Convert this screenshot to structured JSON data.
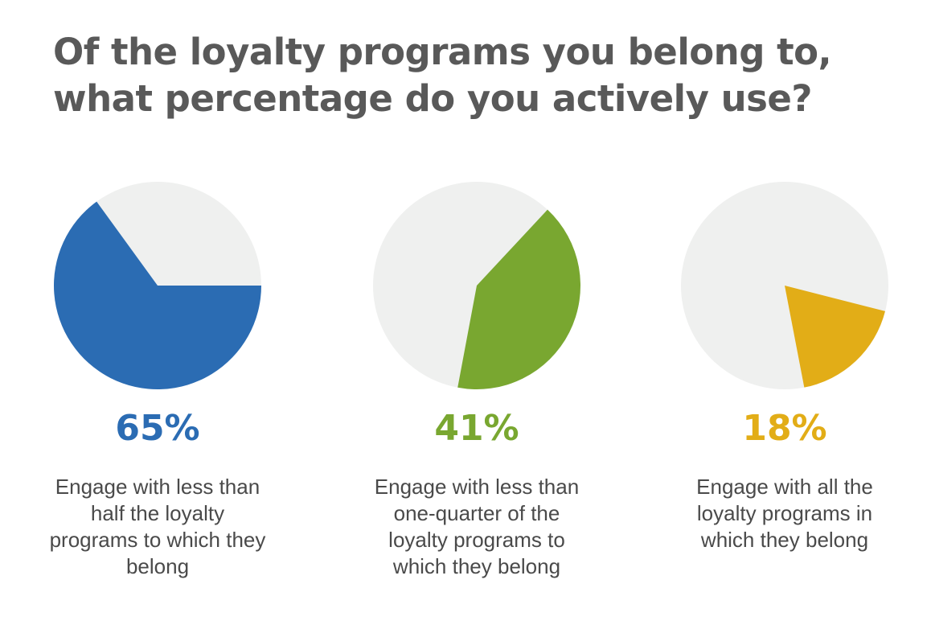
{
  "title": {
    "line1": "Of the loyalty programs you belong to,",
    "line2": "what percentage do you actively use?"
  },
  "chart_data": [
    {
      "type": "pie",
      "value": 65,
      "value_label": "65%",
      "color": "#2b6cb3",
      "background_color": "#eff0ef",
      "caption_lines": [
        "Engage with less than",
        "half the loyalty",
        "programs to which they",
        "belong"
      ]
    },
    {
      "type": "pie",
      "value": 41,
      "value_label": "41%",
      "color": "#79a730",
      "background_color": "#eff0ef",
      "caption_lines": [
        "Engage with less than",
        "one-quarter of the",
        "loyalty programs to",
        "which they belong"
      ]
    },
    {
      "type": "pie",
      "value": 18,
      "value_label": "18%",
      "color": "#e2ad17",
      "background_color": "#eff0ef",
      "caption_lines": [
        "Engage with all the",
        "loyalty programs in",
        "which they belong"
      ]
    }
  ]
}
